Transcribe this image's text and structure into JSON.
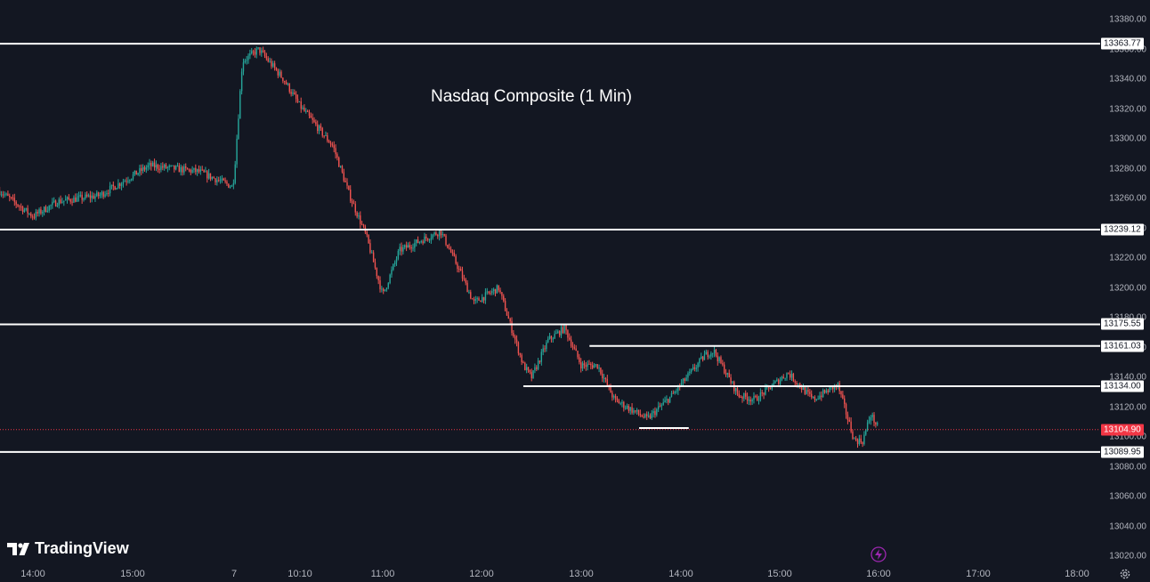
{
  "chart_data": {
    "type": "candlestick",
    "title": "Nasdaq Composite (1 Min)",
    "interval": "1 Min",
    "ylim": [
      13015,
      13390
    ],
    "y_ticks": [
      13380,
      13360,
      13340,
      13320,
      13300,
      13280,
      13260,
      13240,
      13220,
      13200,
      13180,
      13160,
      13140,
      13120,
      13100,
      13080,
      13060,
      13040,
      13020
    ],
    "y_tick_labels": [
      "13380.00",
      "13360.00",
      "13340.00",
      "13320.00",
      "13300.00",
      "13280.00",
      "13260.00",
      "13240.00",
      "13220.00",
      "13200.00",
      "13180.00",
      "13160.00",
      "13140.00",
      "13120.00",
      "13100.00",
      "13080.00",
      "13060.00",
      "13040.00",
      "13020.00"
    ],
    "x_tick_labels": [
      "14:00",
      "15:00",
      "7",
      "10:10",
      "11:00",
      "12:00",
      "13:00",
      "14:00",
      "15:00",
      "16:00",
      "17:00",
      "18:00"
    ],
    "horizontal_levels": [
      {
        "value": 13363.77,
        "label": "13363.77",
        "span": "full"
      },
      {
        "value": 13239.12,
        "label": "13239.12",
        "span": "full"
      },
      {
        "value": 13175.55,
        "label": "13175.55",
        "span": "full"
      },
      {
        "value": 13161.03,
        "label": "13161.03",
        "span": "from 13:05"
      },
      {
        "value": 13134.0,
        "label": "13134.00",
        "span": "from 12:25"
      },
      {
        "value": 13089.95,
        "label": "13089.95",
        "span": "full"
      }
    ],
    "short_level": {
      "value": 13106,
      "span": "13:35-14:05"
    },
    "last_price": {
      "value": 13104.9,
      "label": "13104.90"
    },
    "price_path": [
      [
        "prev 13:40",
        13265
      ],
      [
        "prev 14:00",
        13248
      ],
      [
        "prev 14:15",
        13258
      ],
      [
        "prev 14:40",
        13262
      ],
      [
        "prev 15:10",
        13282
      ],
      [
        "prev 15:40",
        13278
      ],
      [
        "prev 16:00",
        13268
      ],
      [
        "7 9:30",
        13275
      ],
      [
        "7 9:35",
        13352
      ],
      [
        "7 9:45",
        13360
      ],
      [
        "7 10:00",
        13340
      ],
      [
        "7 10:10",
        13322
      ],
      [
        "7 10:30",
        13295
      ],
      [
        "7 10:40",
        13262
      ],
      [
        "7 10:50",
        13235
      ],
      [
        "7 11:00",
        13195
      ],
      [
        "7 11:10",
        13225
      ],
      [
        "7 11:35",
        13238
      ],
      [
        "7 11:45",
        13215
      ],
      [
        "7 11:55",
        13190
      ],
      [
        "7 12:10",
        13200
      ],
      [
        "7 12:25",
        13148
      ],
      [
        "7 12:30",
        13140
      ],
      [
        "7 12:40",
        13165
      ],
      [
        "7 12:50",
        13173
      ],
      [
        "7 13:00",
        13148
      ],
      [
        "7 13:10",
        13148
      ],
      [
        "7 13:20",
        13125
      ],
      [
        "7 13:40",
        13112
      ],
      [
        "7 13:55",
        13128
      ],
      [
        "7 14:15",
        13155
      ],
      [
        "7 14:20",
        13158
      ],
      [
        "7 14:35",
        13128
      ],
      [
        "7 14:45",
        13125
      ],
      [
        "7 15:05",
        13143
      ],
      [
        "7 15:20",
        13125
      ],
      [
        "7 15:35",
        13135
      ],
      [
        "7 15:45",
        13098
      ],
      [
        "7 15:50",
        13097
      ],
      [
        "7 15:55",
        13115
      ],
      [
        "7 16:00",
        13105
      ]
    ],
    "colors": {
      "up": "#26a69a",
      "down": "#ef5350",
      "level": "#ffffff",
      "last": "#f23645",
      "background": "#131722"
    },
    "grid": false
  },
  "branding": {
    "logo_text": "TradingView"
  },
  "icons": {
    "logo": "tradingview-logo-icon",
    "settings": "gear-icon",
    "alert": "lightning-icon"
  }
}
